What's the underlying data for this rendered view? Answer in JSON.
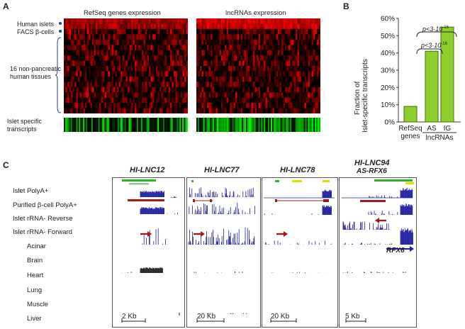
{
  "panelA": {
    "letter": "A",
    "heading_left": "RefSeq genes expression",
    "heading_right": "lncRNAs expression",
    "row_labels": [
      "Human islets",
      "FACS β-cells",
      "16 non-pancreatic",
      "human tissues",
      "Islet specific",
      "transcripts"
    ]
  },
  "panelB": {
    "letter": "B",
    "ylabel_1": "Fraction of",
    "ylabel_2": "Islet-specific transcripts",
    "pval_1": "p<3·10",
    "pval_1_exp": "-16",
    "pval_2": "p<3·10",
    "pval_2_exp": "-16",
    "group_label": "lncRNAs"
  },
  "chart_data": {
    "type": "bar",
    "categories": [
      "RefSeq genes",
      "AS",
      "IG"
    ],
    "category_lines": [
      [
        "RefSeq",
        "genes"
      ],
      [
        "AS"
      ],
      [
        "IG"
      ]
    ],
    "values": [
      9,
      41,
      55
    ],
    "yticks": [
      "0%",
      "10%",
      "20%",
      "30%",
      "40%",
      "50%",
      "60%"
    ],
    "ylim": [
      0,
      60
    ],
    "bar_color": "#8ccf2a"
  },
  "panelC": {
    "letter": "C",
    "loci": [
      {
        "name": "HI-LNC12",
        "subname": "",
        "scale": "2 Kb"
      },
      {
        "name": "HI-LNC77",
        "subname": "",
        "scale": "20 Kb"
      },
      {
        "name": "HI-LNC78",
        "subname": "",
        "scale": "20 Kb"
      },
      {
        "name": "HI-LNC94",
        "subname": "AS-RFX6",
        "scale": "5 Kb"
      }
    ],
    "tracks": [
      "Islet PolyA+",
      "Purified β-cell PolyA+",
      "Islet rRNA- Reverse",
      "Islet rRNA- Forward",
      "Acinar",
      "Brain",
      "Heart",
      "Lung",
      "Muscle",
      "Liver"
    ],
    "gene_label": "RFX6"
  }
}
